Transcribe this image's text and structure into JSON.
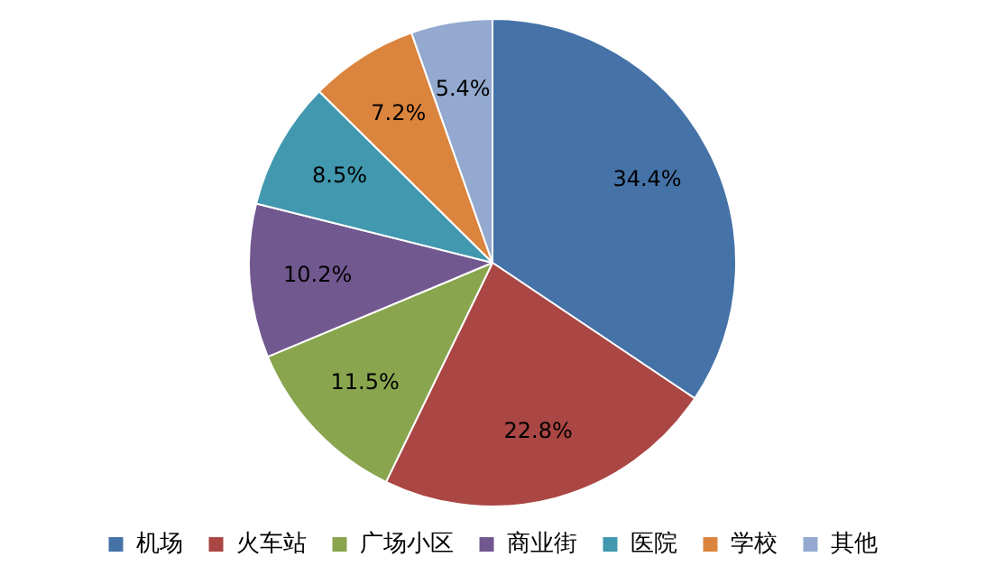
{
  "chart_data": {
    "type": "pie",
    "categories": [
      "机场",
      "火车站",
      "广场小区",
      "商业街",
      "医院",
      "学校",
      "其他"
    ],
    "values": [
      34.4,
      22.8,
      11.5,
      10.2,
      8.5,
      7.2,
      5.4
    ],
    "colors": [
      "#4572a7",
      "#aa4643",
      "#89a54e",
      "#71588f",
      "#4198af",
      "#db843d",
      "#93a9cf"
    ],
    "value_labels": [
      "34.4%",
      "22.8%",
      "11.5%",
      "10.2%",
      "8.5%",
      "7.2%",
      "5.4%"
    ],
    "legend": "bottom"
  }
}
